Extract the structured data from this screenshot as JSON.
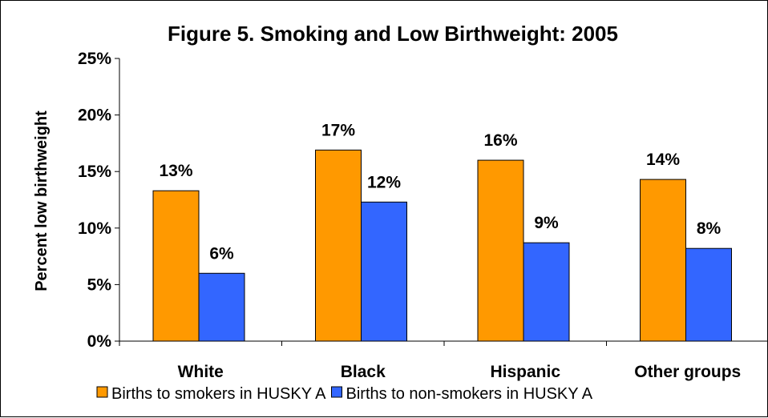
{
  "chart_data": {
    "type": "bar",
    "title": "Figure 5. Smoking and Low Birthweight: 2005",
    "xlabel": "",
    "ylabel": "Percent low birthweight",
    "categories": [
      "White",
      "Black",
      "Hispanic",
      "Other groups"
    ],
    "ylim": [
      0,
      25
    ],
    "yticks": [
      "0%",
      "5%",
      "10%",
      "15%",
      "20%",
      "25%"
    ],
    "grid": false,
    "legend_position": "bottom",
    "series": [
      {
        "name": "Births to smokers in HUSKY A",
        "color": "#FF9900",
        "values": [
          13.3,
          16.9,
          16.0,
          14.3
        ],
        "labels": [
          "13%",
          "17%",
          "16%",
          "14%"
        ]
      },
      {
        "name": "Births to non-smokers in HUSKY A",
        "color": "#3366FF",
        "values": [
          6.0,
          12.3,
          8.7,
          8.2
        ],
        "labels": [
          "6%",
          "12%",
          "9%",
          "8%"
        ]
      }
    ]
  }
}
